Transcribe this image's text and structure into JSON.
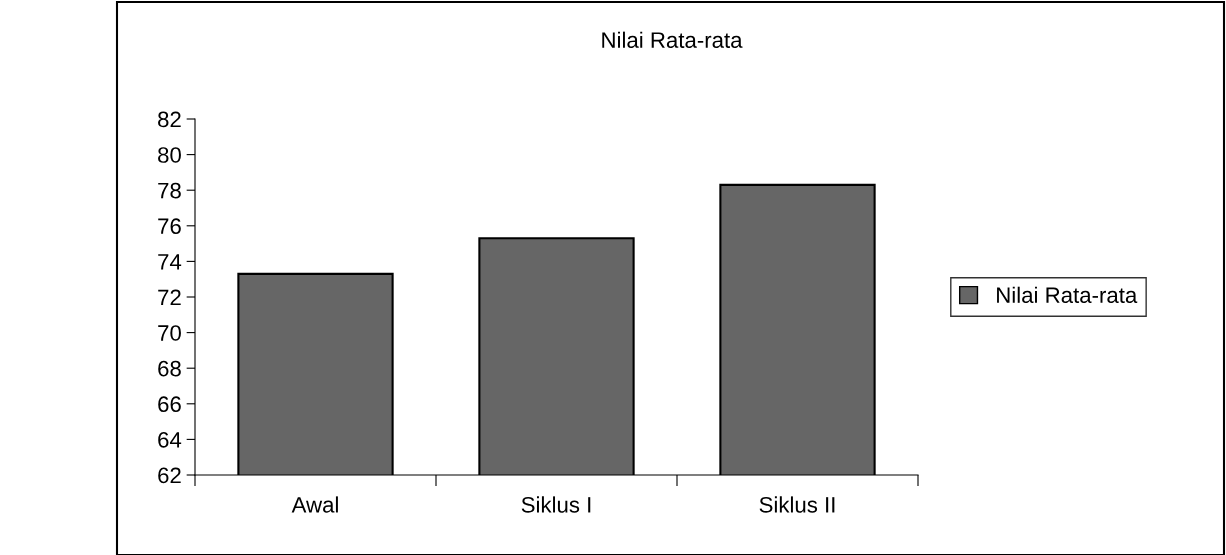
{
  "chart_data": {
    "type": "bar",
    "title": "Nilai Rata-rata",
    "categories": [
      "Awal",
      "Siklus I",
      "Siklus II"
    ],
    "series": [
      {
        "name": "Nilai Rata-rata",
        "color": "#666666",
        "values": [
          73.3,
          75.3,
          78.3
        ]
      }
    ],
    "ylim": [
      62,
      82
    ],
    "yticks": [
      62,
      64,
      66,
      68,
      70,
      72,
      74,
      76,
      78,
      80,
      82
    ],
    "grid": false,
    "legend": "right"
  }
}
